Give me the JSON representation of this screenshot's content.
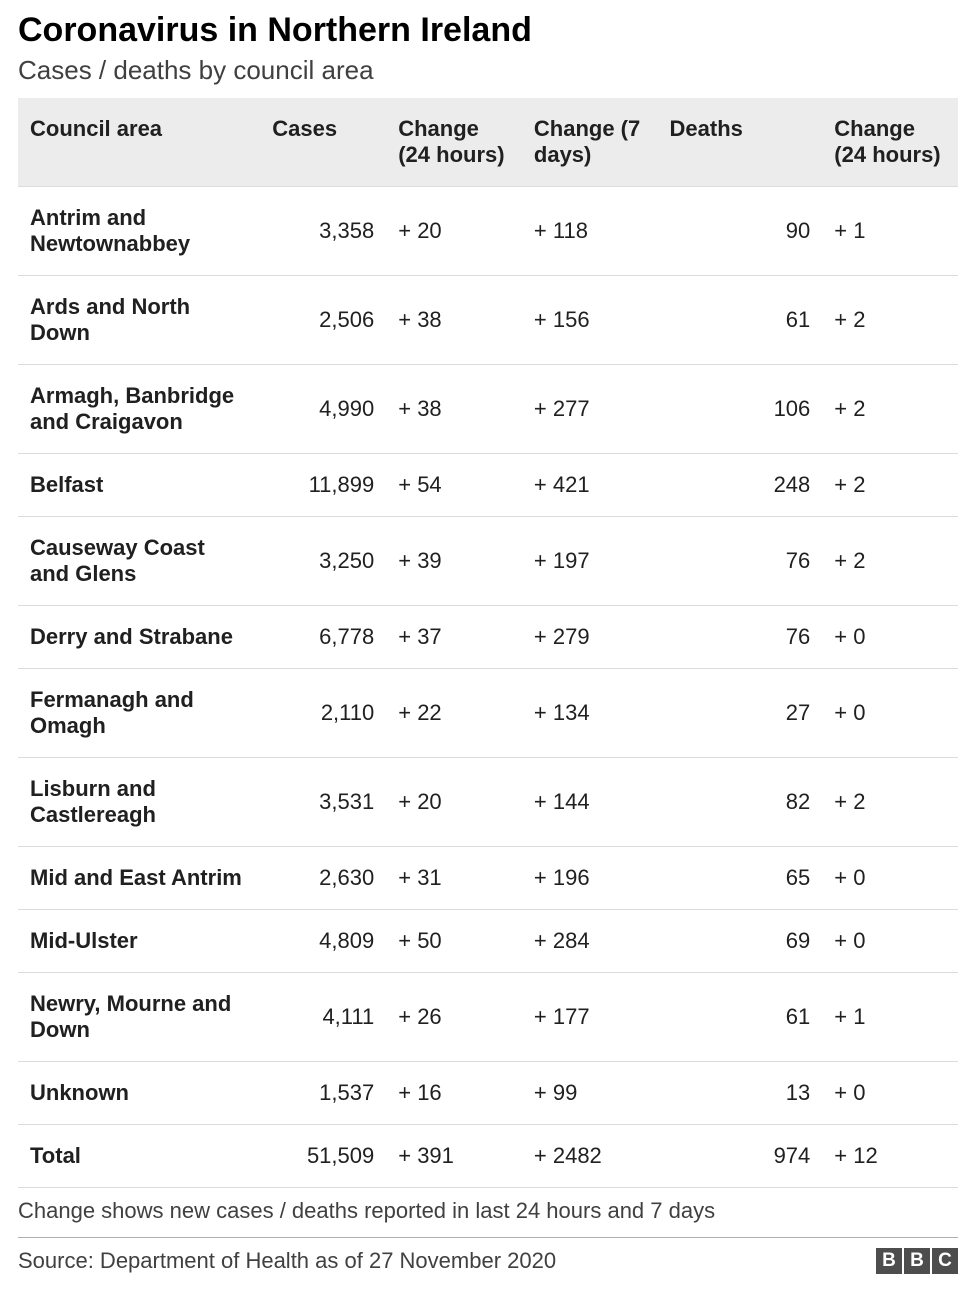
{
  "title": "Coronavirus in Northern Ireland",
  "subtitle": "Cases / deaths by council area",
  "table": {
    "type": "table",
    "columns": [
      {
        "key": "area",
        "label": "Council area",
        "class": "col-area"
      },
      {
        "key": "cases",
        "label": "Cases",
        "class": "col-cases"
      },
      {
        "key": "change24",
        "label": "Change (24 hours)",
        "class": "col-c24"
      },
      {
        "key": "change7",
        "label": "Change (7 days)",
        "class": "col-c7"
      },
      {
        "key": "deaths",
        "label": "Deaths",
        "class": "col-deaths"
      },
      {
        "key": "deaths24",
        "label": "Change (24 hours)",
        "class": "col-d24"
      }
    ],
    "rows": [
      {
        "area": "Antrim and Newtownabbey",
        "cases": "3,358",
        "change24": "+ 20",
        "change7": "+ 118",
        "deaths": "90",
        "deaths24": "+ 1"
      },
      {
        "area": "Ards and North Down",
        "cases": "2,506",
        "change24": "+ 38",
        "change7": "+ 156",
        "deaths": "61",
        "deaths24": "+ 2"
      },
      {
        "area": "Armagh, Banbridge and Craigavon",
        "cases": "4,990",
        "change24": "+ 38",
        "change7": "+ 277",
        "deaths": "106",
        "deaths24": "+ 2"
      },
      {
        "area": "Belfast",
        "cases": "11,899",
        "change24": "+ 54",
        "change7": "+ 421",
        "deaths": "248",
        "deaths24": "+ 2"
      },
      {
        "area": "Causeway Coast and Glens",
        "cases": "3,250",
        "change24": "+ 39",
        "change7": "+ 197",
        "deaths": "76",
        "deaths24": "+ 2"
      },
      {
        "area": "Derry and Strabane",
        "cases": "6,778",
        "change24": "+ 37",
        "change7": "+ 279",
        "deaths": "76",
        "deaths24": "+ 0"
      },
      {
        "area": "Fermanagh and Omagh",
        "cases": "2,110",
        "change24": "+ 22",
        "change7": "+ 134",
        "deaths": "27",
        "deaths24": "+ 0"
      },
      {
        "area": "Lisburn and Castlereagh",
        "cases": "3,531",
        "change24": "+ 20",
        "change7": "+ 144",
        "deaths": "82",
        "deaths24": "+ 2"
      },
      {
        "area": "Mid and East Antrim",
        "cases": "2,630",
        "change24": "+ 31",
        "change7": "+ 196",
        "deaths": "65",
        "deaths24": "+ 0"
      },
      {
        "area": "Mid-Ulster",
        "cases": "4,809",
        "change24": "+ 50",
        "change7": "+ 284",
        "deaths": "69",
        "deaths24": "+ 0"
      },
      {
        "area": "Newry, Mourne and Down",
        "cases": "4,111",
        "change24": "+ 26",
        "change7": "+ 177",
        "deaths": "61",
        "deaths24": "+ 1"
      },
      {
        "area": "Unknown",
        "cases": "1,537",
        "change24": "+ 16",
        "change7": "+ 99",
        "deaths": "13",
        "deaths24": "+ 0"
      },
      {
        "area": "Total",
        "cases": "51,509",
        "change24": "+ 391",
        "change7": "+ 2482",
        "deaths": "974",
        "deaths24": "+ 12"
      }
    ],
    "header_bg": "#ececec",
    "border_color": "#dcdcdc",
    "font_size_header": 22,
    "font_size_cell": 22
  },
  "footnote": "Change shows new cases / deaths reported in last 24 hours and 7 days",
  "source": "Source: Department of Health as of 27 November 2020",
  "logo_letters": [
    "B",
    "B",
    "C"
  ]
}
